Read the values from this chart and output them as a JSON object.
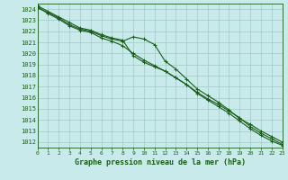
{
  "background_color": "#c8eaea",
  "grid_color": "#a0c8c8",
  "line_color": "#1a5c1a",
  "title": "Graphe pression niveau de la mer (hPa)",
  "title_color": "#1a5c1a",
  "xlim": [
    0,
    23
  ],
  "ylim": [
    1011.5,
    1024.5
  ],
  "yticks": [
    1012,
    1013,
    1014,
    1015,
    1016,
    1017,
    1018,
    1019,
    1020,
    1021,
    1022,
    1023,
    1024
  ],
  "xticks": [
    0,
    1,
    2,
    3,
    4,
    5,
    6,
    7,
    8,
    9,
    10,
    11,
    12,
    13,
    14,
    15,
    16,
    17,
    18,
    19,
    20,
    21,
    22,
    23
  ],
  "series": [
    {
      "x": [
        0,
        1,
        2,
        3,
        4,
        5,
        6,
        7,
        8,
        9,
        10,
        11,
        12,
        13,
        14,
        15,
        16,
        17,
        18,
        19,
        20,
        21,
        22,
        23
      ],
      "y": [
        1024.1,
        1023.7,
        1023.2,
        1022.6,
        1022.2,
        1022.0,
        1021.6,
        1021.3,
        1021.1,
        1021.5,
        1021.3,
        1020.8,
        1019.3,
        1018.6,
        1017.7,
        1016.8,
        1016.2,
        1015.6,
        1014.9,
        1014.1,
        1013.6,
        1013.0,
        1012.5,
        1012.0
      ]
    },
    {
      "x": [
        0,
        1,
        2,
        3,
        4,
        5,
        6,
        7,
        8,
        9,
        10,
        11,
        12,
        13,
        14,
        15,
        16,
        17,
        18,
        19,
        20,
        21,
        22,
        23
      ],
      "y": [
        1024.3,
        1023.8,
        1023.3,
        1022.8,
        1022.3,
        1022.1,
        1021.7,
        1021.4,
        1021.2,
        1019.8,
        1019.2,
        1018.8,
        1018.4,
        1017.8,
        1017.2,
        1016.5,
        1015.9,
        1015.4,
        1014.8,
        1014.2,
        1013.4,
        1012.8,
        1012.3,
        1011.8
      ]
    },
    {
      "x": [
        0,
        1,
        2,
        3,
        4,
        5,
        6,
        7,
        8,
        9,
        10,
        11,
        12,
        13,
        14,
        15,
        16,
        17,
        18,
        19,
        20,
        21,
        22,
        23
      ],
      "y": [
        1024.2,
        1023.6,
        1023.1,
        1022.5,
        1022.1,
        1021.9,
        1021.4,
        1021.1,
        1020.7,
        1020.0,
        1019.4,
        1018.9,
        1018.4,
        1017.8,
        1017.2,
        1016.4,
        1015.8,
        1015.2,
        1014.6,
        1013.9,
        1013.2,
        1012.6,
        1012.1,
        1011.7
      ]
    }
  ],
  "marker": "+",
  "marker_size": 3.5,
  "line_width": 0.8
}
